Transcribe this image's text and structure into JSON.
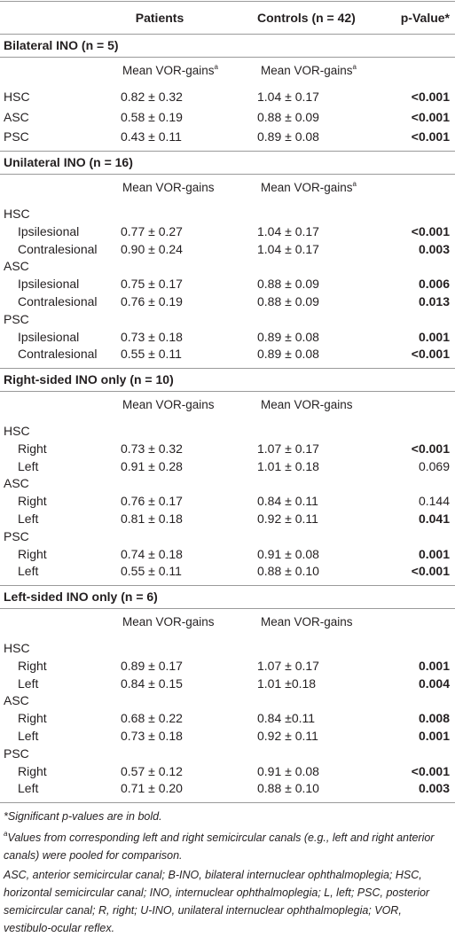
{
  "header": {
    "patients": "Patients",
    "controls": "Controls (n = 42)",
    "p_value": "p-Value*"
  },
  "sections": [
    {
      "title": "Bilateral INO (n = 5)",
      "subheader": {
        "patients": "Mean VOR-gains",
        "patients_note": "a",
        "controls": "Mean VOR-gains",
        "controls_note": "a"
      },
      "rows": [
        {
          "label": "HSC",
          "patients": "0.82 ± 0.32",
          "controls": "1.04 ± 0.17",
          "p": "<0.001",
          "significant": true
        },
        {
          "label": "ASC",
          "patients": "0.58 ± 0.19",
          "controls": "0.88 ± 0.09",
          "p": "<0.001",
          "significant": true
        },
        {
          "label": "PSC",
          "patients": "0.43 ± 0.11",
          "controls": "0.89 ± 0.08",
          "p": "<0.001",
          "significant": true
        }
      ]
    },
    {
      "title": "Unilateral INO (n = 16)",
      "subheader": {
        "patients": "Mean VOR-gains",
        "controls": "Mean VOR-gains",
        "controls_note": "a"
      },
      "rows": [
        {
          "label": "HSC"
        },
        {
          "label": "Ipsilesional",
          "indent": true,
          "patients": "0.77 ± 0.27",
          "controls": "1.04 ± 0.17",
          "p": "<0.001",
          "significant": true
        },
        {
          "label": "Contralesional",
          "indent": true,
          "patients": "0.90 ± 0.24",
          "controls": "1.04 ± 0.17",
          "p": "0.003",
          "significant": true
        },
        {
          "label": "ASC"
        },
        {
          "label": "Ipsilesional",
          "indent": true,
          "patients": "0.75 ± 0.17",
          "controls": "0.88 ± 0.09",
          "p": "0.006",
          "significant": true
        },
        {
          "label": "Contralesional",
          "indent": true,
          "patients": "0.76 ± 0.19",
          "controls": "0.88 ± 0.09",
          "p": "0.013",
          "significant": true
        },
        {
          "label": "PSC"
        },
        {
          "label": "Ipsilesional",
          "indent": true,
          "patients": "0.73 ± 0.18",
          "controls": "0.89 ± 0.08",
          "p": "0.001",
          "significant": true
        },
        {
          "label": "Contralesional",
          "indent": true,
          "patients": "0.55 ± 0.11",
          "controls": "0.89 ± 0.08",
          "p": "<0.001",
          "significant": true
        }
      ]
    },
    {
      "title": "Right-sided INO only (n = 10)",
      "subheader": {
        "patients": "Mean VOR-gains",
        "controls": "Mean VOR-gains"
      },
      "rows": [
        {
          "label": "HSC"
        },
        {
          "label": "Right",
          "indent": true,
          "patients": "0.73 ± 0.32",
          "controls": "1.07 ± 0.17",
          "p": "<0.001",
          "significant": true
        },
        {
          "label": "Left",
          "indent": true,
          "patients": "0.91 ± 0.28",
          "controls": "1.01 ± 0.18",
          "p": "0.069",
          "significant": false
        },
        {
          "label": "ASC"
        },
        {
          "label": "Right",
          "indent": true,
          "patients": "0.76 ± 0.17",
          "controls": "0.84 ± 0.11",
          "p": "0.144",
          "significant": false
        },
        {
          "label": "Left",
          "indent": true,
          "patients": "0.81 ± 0.18",
          "controls": "0.92 ± 0.11",
          "p": "0.041",
          "significant": true
        },
        {
          "label": "PSC"
        },
        {
          "label": "Right",
          "indent": true,
          "patients": "0.74 ± 0.18",
          "controls": "0.91 ± 0.08",
          "p": "0.001",
          "significant": true
        },
        {
          "label": "Left",
          "indent": true,
          "patients": "0.55 ± 0.11",
          "controls": "0.88 ± 0.10",
          "p": "<0.001",
          "significant": true
        }
      ]
    },
    {
      "title": "Left-sided INO only (n = 6)",
      "subheader": {
        "patients": "Mean VOR-gains",
        "controls": "Mean VOR-gains"
      },
      "rows": [
        {
          "label": "HSC"
        },
        {
          "label": "Right",
          "indent": true,
          "patients": "0.89 ± 0.17",
          "controls": "1.07 ± 0.17",
          "p": "0.001",
          "significant": true
        },
        {
          "label": "Left",
          "indent": true,
          "patients": "0.84 ± 0.15",
          "controls": "1.01 ±0.18",
          "p": "0.004",
          "significant": true
        },
        {
          "label": "ASC"
        },
        {
          "label": "Right",
          "indent": true,
          "patients": "0.68 ± 0.22",
          "controls": "0.84 ±0.11",
          "p": "0.008",
          "significant": true
        },
        {
          "label": "Left",
          "indent": true,
          "patients": "0.73 ± 0.18",
          "controls": "0.92 ± 0.11",
          "p": "0.001",
          "significant": true
        },
        {
          "label": "PSC"
        },
        {
          "label": "Right",
          "indent": true,
          "patients": "0.57 ± 0.12",
          "controls": "0.91 ± 0.08",
          "p": "<0.001",
          "significant": true
        },
        {
          "label": "Left",
          "indent": true,
          "patients": "0.71 ± 0.20",
          "controls": "0.88 ± 0.10",
          "p": "0.003",
          "significant": true
        }
      ]
    }
  ],
  "footnotes": {
    "significance": "*Significant p-values are in bold.",
    "pooled_mark": "a",
    "pooled": "Values from corresponding left and right semicircular canals (e.g., left and right anterior canals) were pooled for comparison.",
    "abbreviations": "ASC, anterior semicircular canal; B-INO, bilateral internuclear ophthalmoplegia; HSC, horizontal semicircular canal; INO, internuclear ophthalmoplegia; L, left; PSC, posterior semicircular canal; R, right; U-INO, unilateral internuclear ophthalmoplegia; VOR, vestibulo-ocular reflex."
  }
}
